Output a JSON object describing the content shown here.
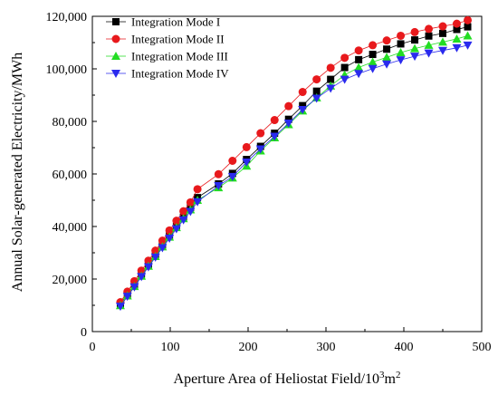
{
  "chart_data": {
    "type": "line",
    "xlabel": "Aperture Area of Heliostat Field/10",
    "xlabel_sup1": "3",
    "xlabel_mid": "m",
    "xlabel_sup2": "2",
    "ylabel": "Annual Solar-generated Electricity/MWh",
    "xlim": [
      0,
      500
    ],
    "ylim": [
      0,
      120000
    ],
    "xticks": [
      0,
      100,
      200,
      300,
      400,
      500
    ],
    "xtick_labels": [
      "0",
      "100",
      "200",
      "300",
      "400",
      "500"
    ],
    "yticks": [
      0,
      20000,
      40000,
      60000,
      80000,
      100000,
      120000
    ],
    "ytick_labels": [
      "0",
      "20,000",
      "40,000",
      "60,000",
      "80,000",
      "100,000",
      "120,000"
    ],
    "grid": false,
    "legend_position": "top-right",
    "x": [
      36,
      45,
      54,
      63,
      72,
      81,
      90,
      99,
      108,
      117,
      126,
      135,
      162,
      180,
      198,
      216,
      234,
      252,
      270,
      288,
      306,
      324,
      342,
      360,
      378,
      396,
      414,
      432,
      450,
      468,
      482
    ],
    "series": [
      {
        "name": "Integration Mode I",
        "marker": "square",
        "color": "#000000",
        "values": [
          10500,
          14200,
          17800,
          21900,
          25500,
          29200,
          32900,
          36500,
          40000,
          43500,
          47200,
          51000,
          56200,
          60200,
          65500,
          70500,
          75500,
          80800,
          86000,
          91500,
          96000,
          100500,
          103500,
          105500,
          107500,
          109500,
          111000,
          112500,
          113500,
          115000,
          116000
        ]
      },
      {
        "name": "Integration Mode II",
        "marker": "circle",
        "color": "#e8191c",
        "values": [
          11200,
          15200,
          19200,
          23200,
          27000,
          30800,
          34600,
          38500,
          42200,
          45800,
          49200,
          54200,
          59900,
          65000,
          70200,
          75500,
          80500,
          85800,
          91200,
          96000,
          100400,
          104200,
          107000,
          109000,
          110800,
          112600,
          114000,
          115200,
          116200,
          117200,
          118500
        ]
      },
      {
        "name": "Integration Mode III",
        "marker": "triangle-up",
        "color": "#22dd22",
        "values": [
          9900,
          13600,
          17200,
          21100,
          24900,
          28600,
          32300,
          36000,
          39600,
          43000,
          46400,
          50000,
          54800,
          58500,
          63000,
          68800,
          73800,
          78800,
          84000,
          89000,
          93500,
          97700,
          100500,
          102600,
          104400,
          106200,
          107700,
          109000,
          110200,
          111400,
          112600
        ]
      },
      {
        "name": "Integration Mode IV",
        "marker": "triangle-down",
        "color": "#2a2aee",
        "values": [
          9600,
          13400,
          17000,
          20900,
          24600,
          28300,
          31900,
          35500,
          39100,
          42500,
          45700,
          49400,
          55500,
          59000,
          64500,
          69500,
          74300,
          79300,
          84500,
          88800,
          92600,
          96000,
          98200,
          100100,
          101800,
          103400,
          104800,
          106000,
          107000,
          108000,
          109000
        ]
      }
    ]
  }
}
